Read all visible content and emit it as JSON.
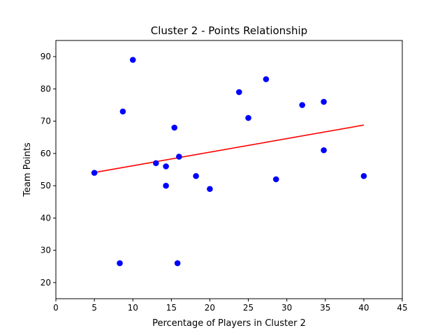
{
  "chart_data": {
    "type": "scatter",
    "title": "Cluster 2 - Points Relationship",
    "xlabel": "Percentage of Players in Cluster 2",
    "ylabel": "Team Points",
    "xlim": [
      0,
      45
    ],
    "ylim": [
      15,
      95
    ],
    "xticks": [
      "0",
      "5",
      "10",
      "15",
      "20",
      "25",
      "30",
      "35",
      "40",
      "45"
    ],
    "yticks": [
      "20",
      "30",
      "40",
      "50",
      "60",
      "70",
      "80",
      "90"
    ],
    "grid": false,
    "legend": "none",
    "colors": {
      "points": "#0000ff",
      "trend": "#ff0000"
    },
    "series": [
      {
        "type": "scatter",
        "points": [
          [
            5.0,
            54
          ],
          [
            8.3,
            26
          ],
          [
            8.7,
            73
          ],
          [
            10.0,
            89
          ],
          [
            13.0,
            57
          ],
          [
            14.3,
            56
          ],
          [
            14.3,
            50
          ],
          [
            15.4,
            68
          ],
          [
            15.8,
            26
          ],
          [
            16.0,
            59
          ],
          [
            18.2,
            53
          ],
          [
            20.0,
            49
          ],
          [
            23.8,
            79
          ],
          [
            25.0,
            71
          ],
          [
            27.3,
            83
          ],
          [
            28.6,
            52
          ],
          [
            32.0,
            75
          ],
          [
            34.8,
            76
          ],
          [
            34.8,
            61
          ],
          [
            40.0,
            53
          ]
        ]
      },
      {
        "type": "line",
        "points": [
          [
            5.0,
            54.1
          ],
          [
            40.0,
            68.8
          ]
        ]
      }
    ]
  }
}
